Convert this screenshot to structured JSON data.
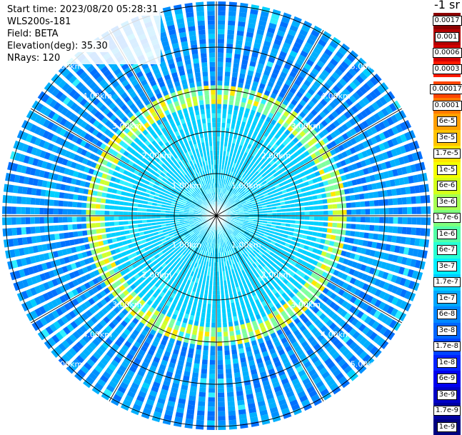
{
  "header": {
    "start_time": "Start time: 2023/08/20 05:28:31",
    "device": "WLS200s-181",
    "field": "Field: BETA",
    "elevation": "Elevation(deg): 35.30",
    "nrays": "NRays: 120"
  },
  "colorbar": {
    "unit": "-1 sr",
    "upper": [
      {
        "label": "0.0017",
        "color": "#8b0000"
      },
      {
        "label": "0.001",
        "color": "#b40000"
      },
      {
        "label": "0.0006",
        "color": "#d40000"
      },
      {
        "label": "0.0003",
        "color": "#ff1a00"
      }
    ],
    "lower": [
      {
        "label": "0.00017",
        "color": "#ff4500"
      },
      {
        "label": "0.0001",
        "color": "#ff7a00"
      },
      {
        "label": "6e-5",
        "color": "#ffa000"
      },
      {
        "label": "3e-5",
        "color": "#ffc400"
      },
      {
        "label": "1.7e-5",
        "color": "#ffe600"
      },
      {
        "label": "1e-5",
        "color": "#f5ff00"
      },
      {
        "label": "6e-6",
        "color": "#d4ff1a"
      },
      {
        "label": "3e-6",
        "color": "#a6ff52"
      },
      {
        "label": "1.7e-6",
        "color": "#7dff7d"
      },
      {
        "label": "1e-6",
        "color": "#52ffa6"
      },
      {
        "label": "6e-7",
        "color": "#29ffd4"
      },
      {
        "label": "3e-7",
        "color": "#00f0ff"
      },
      {
        "label": "1.7e-7",
        "color": "#00cdff"
      },
      {
        "label": "1e-7",
        "color": "#00a8ff"
      },
      {
        "label": "6e-8",
        "color": "#0088ff"
      },
      {
        "label": "3e-8",
        "color": "#0066ff"
      },
      {
        "label": "1.7e-8",
        "color": "#0044ff"
      },
      {
        "label": "1e-8",
        "color": "#0022ff"
      },
      {
        "label": "6e-9",
        "color": "#0000f0"
      },
      {
        "label": "3e-9",
        "color": "#0000c8"
      },
      {
        "label": "1.7e-9",
        "color": "#0000a0"
      },
      {
        "label": "1e-9",
        "color": "#000080"
      }
    ]
  },
  "range_labels": [
    "1.00km",
    "2.00km",
    "3.00km",
    "4.00km",
    "5.00km"
  ],
  "range_rings_km": [
    1,
    2,
    3,
    4,
    5
  ]
}
